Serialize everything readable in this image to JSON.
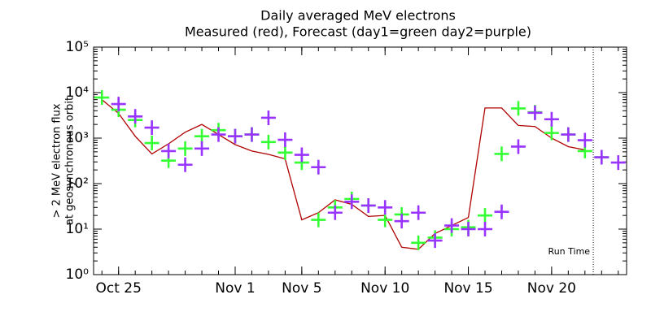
{
  "chart_data": {
    "type": "line",
    "title": "Daily averaged MeV electrons",
    "subtitle": "Measured (red), Forecast (day1=green day2=purple)",
    "y_label": [
      "> 2 MeV electron flux",
      "at geosynchronous orbit"
    ],
    "log_y": true,
    "ylim": [
      1,
      100000
    ],
    "yticks": [
      {
        "value": 1,
        "label": "10⁰"
      },
      {
        "value": 10,
        "label": "10¹"
      },
      {
        "value": 100,
        "label": "10²"
      },
      {
        "value": 1000,
        "label": "10³"
      },
      {
        "value": 10000,
        "label": "10⁴"
      },
      {
        "value": 100000,
        "label": "10⁵"
      }
    ],
    "xlim": [
      23.5,
      55.5
    ],
    "xticks": [
      {
        "value": 25,
        "label": "Oct 25"
      },
      {
        "value": 32,
        "label": "Nov 1"
      },
      {
        "value": 36,
        "label": "Nov 5"
      },
      {
        "value": 41,
        "label": "Nov 10"
      },
      {
        "value": 46,
        "label": "Nov 15"
      },
      {
        "value": 51,
        "label": "Nov 20"
      }
    ],
    "run_time": {
      "label": "Run Time",
      "x": 53.5
    },
    "series": [
      {
        "name": "Measured",
        "color": "#b00000",
        "style": "line",
        "x": [
          24,
          25,
          26,
          27,
          28,
          29,
          30,
          31,
          32,
          33,
          34,
          35,
          36,
          37,
          38,
          39,
          40,
          41,
          42,
          43,
          44,
          45,
          46,
          47,
          48,
          49,
          50,
          51,
          52,
          53
        ],
        "values": [
          7000,
          3500,
          1100,
          450,
          750,
          1350,
          2000,
          1200,
          720,
          520,
          440,
          350,
          16,
          23,
          44,
          35,
          19,
          20,
          4,
          3.6,
          8,
          12,
          18,
          4600,
          4600,
          1900,
          1800,
          1000,
          650,
          550
        ]
      },
      {
        "name": "Forecast day1",
        "color": "#33ff33",
        "style": "cross",
        "x": [
          24,
          25,
          26,
          27,
          28,
          29,
          30,
          31,
          32,
          33,
          34,
          35,
          36,
          37,
          38,
          39,
          40,
          41,
          42,
          43,
          44,
          45,
          46,
          47,
          48,
          49,
          50,
          51,
          52,
          53,
          54
        ],
        "values": [
          7800,
          4200,
          2500,
          780,
          320,
          590,
          1100,
          1500,
          1100,
          1200,
          820,
          480,
          290,
          16,
          30,
          46,
          33,
          16,
          21,
          5,
          6.5,
          10,
          11,
          20,
          450,
          4500,
          3700,
          1300,
          1200,
          520,
          380
        ]
      },
      {
        "name": "Forecast day2",
        "color": "#9933ff",
        "style": "cross",
        "x": [
          25,
          26,
          27,
          28,
          29,
          30,
          31,
          32,
          33,
          34,
          35,
          36,
          37,
          38,
          39,
          40,
          41,
          42,
          43,
          44,
          45,
          46,
          47,
          48,
          49,
          50,
          51,
          52,
          53,
          54,
          55
        ],
        "values": [
          5600,
          3000,
          1700,
          520,
          260,
          590,
          1200,
          1100,
          1200,
          2800,
          920,
          430,
          230,
          23,
          40,
          33,
          30,
          15,
          23,
          5.6,
          12,
          10,
          10,
          24,
          650,
          3600,
          2600,
          1200,
          900,
          380,
          290
        ]
      }
    ]
  }
}
